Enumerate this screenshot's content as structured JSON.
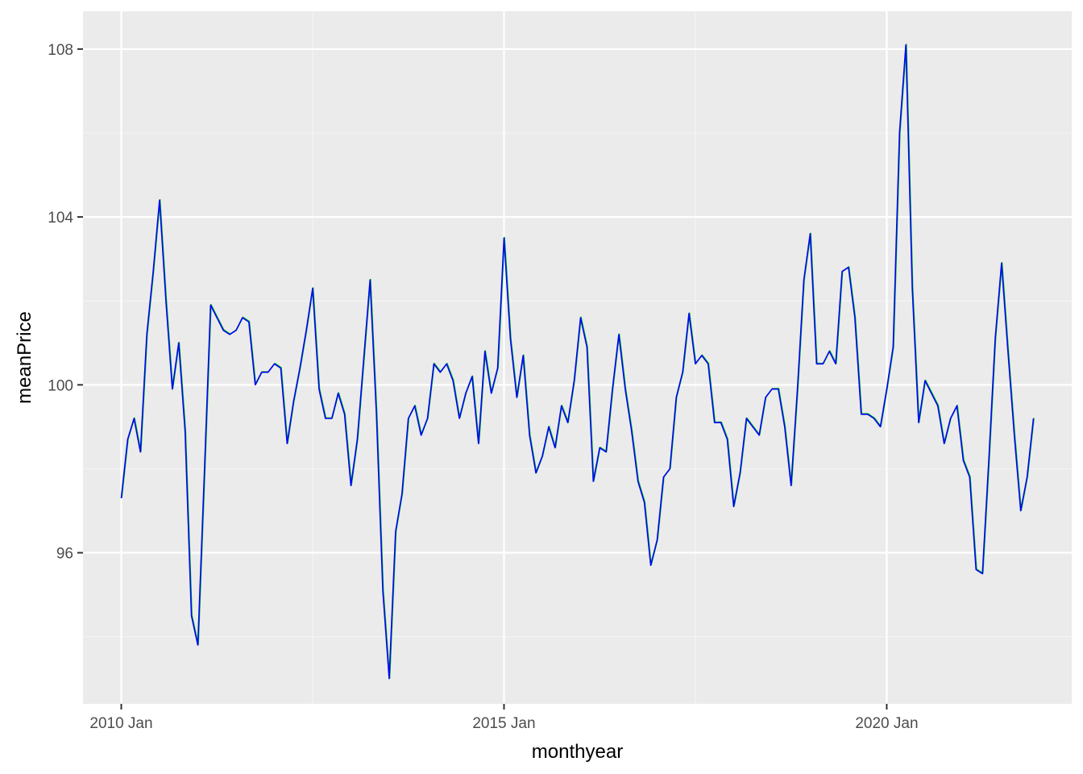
{
  "chart_data": {
    "type": "line",
    "xlabel": "monthyear",
    "ylabel": "meanPrice",
    "xlim": [
      "2009-07",
      "2022-06"
    ],
    "ylim": [
      92.4,
      108.9
    ],
    "x_ticks": [
      {
        "x": "2010-01",
        "label": "2010 Jan"
      },
      {
        "x": "2015-01",
        "label": "2015 Jan"
      },
      {
        "x": "2020-01",
        "label": "2020 Jan"
      }
    ],
    "y_ticks": [
      96,
      100,
      104,
      108
    ],
    "grid": true,
    "legend": "none",
    "series": [
      {
        "x": [
          "2010-01",
          "2010-02",
          "2010-03",
          "2010-04",
          "2010-05",
          "2010-06",
          "2010-07",
          "2010-08",
          "2010-09",
          "2010-10",
          "2010-11",
          "2010-12",
          "2011-01",
          "2011-02",
          "2011-03",
          "2011-04",
          "2011-05",
          "2011-06",
          "2011-07",
          "2011-08",
          "2011-09",
          "2011-10",
          "2011-11",
          "2011-12",
          "2012-01",
          "2012-02",
          "2012-03",
          "2012-04",
          "2012-05",
          "2012-06",
          "2012-07",
          "2012-08",
          "2012-09",
          "2012-10",
          "2012-11",
          "2012-12",
          "2013-01",
          "2013-02",
          "2013-03",
          "2013-04",
          "2013-05",
          "2013-06",
          "2013-07",
          "2013-08",
          "2013-09",
          "2013-10",
          "2013-11",
          "2013-12",
          "2014-01",
          "2014-02",
          "2014-03",
          "2014-04",
          "2014-05",
          "2014-06",
          "2014-07",
          "2014-08",
          "2014-09",
          "2014-10",
          "2014-11",
          "2014-12",
          "2015-01",
          "2015-02",
          "2015-03",
          "2015-04",
          "2015-05",
          "2015-06",
          "2015-07",
          "2015-08",
          "2015-09",
          "2015-10",
          "2015-11",
          "2015-12",
          "2016-01",
          "2016-02",
          "2016-03",
          "2016-04",
          "2016-05",
          "2016-06",
          "2016-07",
          "2016-08",
          "2016-09",
          "2016-10",
          "2016-11",
          "2016-12",
          "2017-01",
          "2017-02",
          "2017-03",
          "2017-04",
          "2017-05",
          "2017-06",
          "2017-07",
          "2017-08",
          "2017-09",
          "2017-10",
          "2017-11",
          "2017-12",
          "2018-01",
          "2018-02",
          "2018-03",
          "2018-04",
          "2018-05",
          "2018-06",
          "2018-07",
          "2018-08",
          "2018-09",
          "2018-10",
          "2018-11",
          "2018-12",
          "2019-01",
          "2019-02",
          "2019-03",
          "2019-04",
          "2019-05",
          "2019-06",
          "2019-07",
          "2019-08",
          "2019-09",
          "2019-10",
          "2019-11",
          "2019-12",
          "2020-01",
          "2020-02",
          "2020-03",
          "2020-04",
          "2020-05",
          "2020-06",
          "2020-07",
          "2020-08",
          "2020-09",
          "2020-10",
          "2020-11",
          "2020-12",
          "2021-01",
          "2021-02",
          "2021-03",
          "2021-04",
          "2021-05",
          "2021-06",
          "2021-07",
          "2021-08",
          "2021-09",
          "2021-10",
          "2021-11",
          "2021-12"
        ],
        "values": [
          97.3,
          98.7,
          99.2,
          98.4,
          101.2,
          102.7,
          104.4,
          102.0,
          99.9,
          101.0,
          98.9,
          94.5,
          93.8,
          97.8,
          101.9,
          101.6,
          101.3,
          101.2,
          101.3,
          101.6,
          101.5,
          100.0,
          100.3,
          100.3,
          100.5,
          100.4,
          98.6,
          99.6,
          100.4,
          101.3,
          102.3,
          99.9,
          99.2,
          99.2,
          99.8,
          99.3,
          97.6,
          98.7,
          100.6,
          102.5,
          99.3,
          95.1,
          93.0,
          96.5,
          97.4,
          99.2,
          99.5,
          98.8,
          99.2,
          100.5,
          100.3,
          100.5,
          100.1,
          99.2,
          99.8,
          100.2,
          98.6,
          100.8,
          99.8,
          100.4,
          103.5,
          101.1,
          99.7,
          100.7,
          98.8,
          97.9,
          98.3,
          99.0,
          98.5,
          99.5,
          99.1,
          100.1,
          101.6,
          100.9,
          97.7,
          98.5,
          98.4,
          99.9,
          101.2,
          99.9,
          98.9,
          97.7,
          97.2,
          95.7,
          96.3,
          97.8,
          98.0,
          99.7,
          100.3,
          101.7,
          100.5,
          100.7,
          100.5,
          99.1,
          99.1,
          98.7,
          97.1,
          97.9,
          99.2,
          99.0,
          98.8,
          99.7,
          99.9,
          99.9,
          99.0,
          97.6,
          99.9,
          102.5,
          103.6,
          100.5,
          100.5,
          100.8,
          100.5,
          102.7,
          102.8,
          101.6,
          99.3,
          99.3,
          99.2,
          99.0,
          99.9,
          100.9,
          106.0,
          108.1,
          102.3,
          99.1,
          100.1,
          99.8,
          99.5,
          98.6,
          99.2,
          99.5,
          98.2,
          97.8,
          95.6,
          95.5,
          98.2,
          101.1,
          102.9,
          100.8,
          98.8,
          97.0,
          97.8,
          99.2
        ]
      }
    ]
  },
  "colors": {
    "panel_background": "#ebebeb",
    "grid_major": "#ffffff",
    "grid_minor": "#f4f4f4",
    "line": "#0000ff",
    "line_shadow": "#00cc00",
    "tick": "#333333",
    "tick_label": "#4d4d4d"
  }
}
